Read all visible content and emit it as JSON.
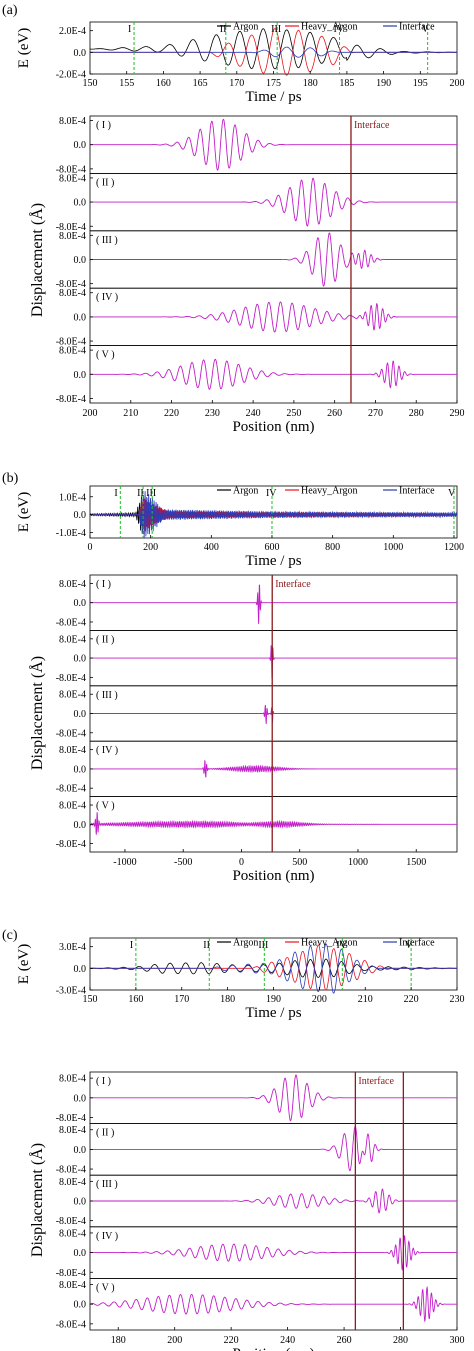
{
  "panels": [
    {
      "letter": "(a)",
      "top_ylabel": "E (eV)",
      "top_xlabel": "Time / ps",
      "bottom_ylabel": "Displacement (Å)",
      "bottom_xlabel": "Position (nm)",
      "interface_label": "Interface"
    },
    {
      "letter": "(b)",
      "top_ylabel": "E (eV)",
      "top_xlabel": "Time / ps",
      "bottom_ylabel": "Displacement (Å)",
      "bottom_xlabel": "Position (nm)",
      "interface_label": "Interface"
    },
    {
      "letter": "(c)",
      "top_ylabel": "E (eV)",
      "top_xlabel": "Time / ps",
      "bottom_ylabel": "Displacement (Å)",
      "bottom_xlabel": "Position (nm)",
      "interface_label": "Interface"
    }
  ],
  "colors": {
    "argon": "#000000",
    "heavy_argon": "#e8141c",
    "interface": "#2a3bb8",
    "displacement": "#c21ec9",
    "marker": "#1fbf2a",
    "interface_line": "#8b1a1a"
  },
  "chart_data": [
    {
      "type": "line",
      "id": "a-top",
      "xlabel": "Time / ps",
      "ylabel": "E (eV)",
      "xlim": [
        150,
        200
      ],
      "ylim": [
        -0.0002,
        0.00028
      ],
      "xticks": [
        "150",
        "155",
        "160",
        "165",
        "170",
        "175",
        "180",
        "185",
        "190",
        "195",
        "200"
      ],
      "yticks": [
        {
          "v": 0.0002,
          "t": "2.0E-4"
        },
        {
          "v": 0,
          "t": "0.0"
        },
        {
          "v": -0.0002,
          "t": "-2.0E-4"
        }
      ],
      "legend": [
        "Argon",
        "Heavy_Argon",
        "Interface"
      ],
      "legend_position": "top-right",
      "markers": [
        {
          "x": 156,
          "label": "I"
        },
        {
          "x": 168.5,
          "label": "II"
        },
        {
          "x": 175.5,
          "label": "III"
        },
        {
          "x": 184,
          "label": "IV"
        },
        {
          "x": 196,
          "label": "V"
        }
      ],
      "series": [
        {
          "name": "Argon",
          "envelope": [
            [
              150,
              0
            ],
            [
              160,
              3e-05
            ],
            [
              167,
              0.00013
            ],
            [
              173,
              0.00019
            ],
            [
              179,
              0.00017
            ],
            [
              185,
              8e-05
            ],
            [
              192,
              1e-05
            ],
            [
              200,
              0
            ]
          ],
          "period_ps": 3.2,
          "offset": 3e-05
        },
        {
          "name": "Heavy_Argon",
          "envelope": [
            [
              166,
              0
            ],
            [
              170,
              0.00012
            ],
            [
              175,
              0.00022
            ],
            [
              179,
              0.0002
            ],
            [
              183,
              0.00012
            ],
            [
              186,
              0
            ]
          ],
          "period_ps": 3.2,
          "offset": 0
        },
        {
          "name": "Interface",
          "envelope": [
            [
              172,
              0
            ],
            [
              176,
              5e-05
            ],
            [
              181,
              4e-05
            ],
            [
              184,
              0
            ]
          ],
          "period_ps": 3.2,
          "offset": 0
        }
      ]
    },
    {
      "type": "line",
      "id": "a-bottom",
      "subplots": [
        "( I )",
        "( II )",
        "( III )",
        "( IV )",
        "( V )"
      ],
      "xlabel": "Position (nm)",
      "ylabel": "Displacement (Å)",
      "xlim": [
        200,
        290
      ],
      "ylim": [
        -0.00095,
        0.00095
      ],
      "xticks": [
        "200",
        "210",
        "220",
        "230",
        "240",
        "250",
        "260",
        "270",
        "280",
        "290"
      ],
      "yticks": [
        {
          "v": 0.0008,
          "t": "8.0E-4"
        },
        {
          "v": 0,
          "t": "0.0"
        },
        {
          "v": -0.0008,
          "t": "-8.0E-4"
        }
      ],
      "interface_x": [
        264
      ],
      "series": [
        {
          "name": "( I )",
          "packets": [
            {
              "c": 232,
              "w": 7,
              "a": 0.00085,
              "k": 1.1
            }
          ]
        },
        {
          "name": "( II )",
          "packets": [
            {
              "c": 254,
              "w": 7,
              "a": 0.0008,
              "k": 1.1
            }
          ]
        },
        {
          "name": "( III )",
          "packets": [
            {
              "c": 258,
              "w": 4.5,
              "a": 0.0009,
              "k": 1.1
            },
            {
              "c": 267,
              "w": 2.5,
              "a": 0.0003,
              "k": 2
            }
          ]
        },
        {
          "name": "( IV )",
          "packets": [
            {
              "c": 246,
              "w": 12,
              "a": 0.0005,
              "k": 1.1
            },
            {
              "c": 270,
              "w": 2.5,
              "a": 0.00045,
              "k": 2.2
            }
          ]
        },
        {
          "name": "( V )",
          "packets": [
            {
              "c": 230,
              "w": 10,
              "a": 0.0005,
              "k": 1.1
            },
            {
              "c": 274,
              "w": 2.5,
              "a": 0.00045,
              "k": 2.2
            }
          ]
        }
      ]
    },
    {
      "type": "line",
      "id": "b-top",
      "xlabel": "Time / ps",
      "ylabel": "E (eV)",
      "xlim": [
        0,
        1210
      ],
      "ylim": [
        -0.00013,
        0.00016
      ],
      "xticks": [
        "0",
        "200",
        "400",
        "600",
        "800",
        "1000",
        "1200"
      ],
      "yticks": [
        {
          "v": 0.0001,
          "t": "1.0E-4"
        },
        {
          "v": 0,
          "t": "0.0"
        },
        {
          "v": -0.0001,
          "t": "-1.0E-4"
        }
      ],
      "legend": [
        "Argon",
        "Heavy_Argon",
        "Interface"
      ],
      "legend_position": "top-right",
      "markers": [
        {
          "x": 100,
          "label": "I"
        },
        {
          "x": 175,
          "label": "II"
        },
        {
          "x": 205,
          "label": "III"
        },
        {
          "x": 600,
          "label": "IV"
        },
        {
          "x": 1200,
          "label": "V"
        }
      ],
      "series": [
        {
          "name": "Argon",
          "envelope": [
            [
              0,
              5e-06
            ],
            [
              150,
              1e-05
            ],
            [
              175,
              0.00013
            ],
            [
              200,
              4e-05
            ],
            [
              260,
              1e-05
            ],
            [
              1200,
              4e-06
            ]
          ],
          "period_ps": 6,
          "offset": 0
        },
        {
          "name": "Heavy_Argon",
          "envelope": [
            [
              0,
              0
            ],
            [
              160,
              0
            ],
            [
              175,
              0.0001
            ],
            [
              205,
              6e-05
            ],
            [
              260,
              2e-05
            ],
            [
              600,
              1e-05
            ],
            [
              1200,
              5e-06
            ]
          ],
          "period_ps": 6,
          "offset": 0
        },
        {
          "name": "Interface",
          "envelope": [
            [
              0,
              0
            ],
            [
              160,
              0
            ],
            [
              175,
              0.00014
            ],
            [
              205,
              0.0001
            ],
            [
              240,
              3e-05
            ],
            [
              600,
              1.8e-05
            ],
            [
              1200,
              1.2e-05
            ]
          ],
          "period_ps": 6,
          "offset": 0
        }
      ]
    },
    {
      "type": "line",
      "id": "b-bottom",
      "subplots": [
        "( I )",
        "( II )",
        "( III )",
        "( IV )",
        "( V )"
      ],
      "xlabel": "Position (nm)",
      "ylabel": "Displacement (Å)",
      "xlim": [
        -1300,
        1850
      ],
      "ylim": [
        -0.00115,
        0.00115
      ],
      "xticks": [
        "-1000",
        "-500",
        "0",
        "500",
        "1000",
        "1500"
      ],
      "yticks": [
        {
          "v": 0.0008,
          "t": "8.0E-4"
        },
        {
          "v": 0,
          "t": "0.0"
        },
        {
          "v": -0.0008,
          "t": "-8.0E-4"
        }
      ],
      "interface_x": [
        264
      ],
      "series": [
        {
          "name": "( I )",
          "packets": [
            {
              "c": 150,
              "w": 12,
              "a": 0.00095,
              "k": 2
            }
          ]
        },
        {
          "name": "( II )",
          "packets": [
            {
              "c": 262,
              "w": 10,
              "a": 0.0009,
              "k": 2
            }
          ]
        },
        {
          "name": "( III )",
          "packets": [
            {
              "c": 210,
              "w": 12,
              "a": 0.00045,
              "k": 2
            },
            {
              "c": 264,
              "w": 8,
              "a": 0.0004,
              "k": 2
            }
          ]
        },
        {
          "name": "( IV )",
          "packets": [
            {
              "c": -310,
              "w": 14,
              "a": 0.0004,
              "k": 2
            },
            {
              "c": 120,
              "w": 260,
              "a": 0.00012,
              "k": 2
            }
          ]
        },
        {
          "name": "( V )",
          "packets": [
            {
              "c": -1240,
              "w": 14,
              "a": 0.0005,
              "k": 2
            },
            {
              "c": -400,
              "w": 800,
              "a": 0.00012,
              "k": 2
            },
            {
              "c": 300,
              "w": 300,
              "a": 0.00015,
              "k": 2
            }
          ]
        }
      ]
    },
    {
      "type": "line",
      "id": "c-top",
      "xlabel": "Time / ps",
      "ylabel": "E (eV)",
      "xlim": [
        150,
        230
      ],
      "ylim": [
        -0.0003,
        0.00042
      ],
      "xticks": [
        "150",
        "160",
        "170",
        "180",
        "190",
        "200",
        "210",
        "220",
        "230"
      ],
      "yticks": [
        {
          "v": 0.0003,
          "t": "3.0E-4"
        },
        {
          "v": 0,
          "t": "0.0"
        },
        {
          "v": -0.0003,
          "t": "-3.0E-4"
        }
      ],
      "legend": [
        "Argon",
        "Heavy_Argon",
        "Interface"
      ],
      "legend_position": "top-right",
      "markers": [
        {
          "x": 160,
          "label": "I"
        },
        {
          "x": 176,
          "label": "II"
        },
        {
          "x": 188,
          "label": "III"
        },
        {
          "x": 205,
          "label": "IV"
        },
        {
          "x": 220,
          "label": "V"
        }
      ],
      "series": [
        {
          "name": "Argon",
          "envelope": [
            [
              150,
              0
            ],
            [
              160,
              2e-05
            ],
            [
              166,
              7e-05
            ],
            [
              175,
              8e-05
            ],
            [
              183,
              4e-05
            ],
            [
              190,
              6e-05
            ],
            [
              196,
              0.00012
            ],
            [
              202,
              0.00013
            ],
            [
              210,
              3e-05
            ],
            [
              230,
              0
            ]
          ],
          "period_ps": 3.4,
          "offset": 0
        },
        {
          "name": "Heavy_Argon",
          "envelope": [
            [
              185,
              0
            ],
            [
              193,
              0.00015
            ],
            [
              200,
              0.00033
            ],
            [
              206,
              0.00022
            ],
            [
              212,
              5e-05
            ],
            [
              216,
              0
            ]
          ],
          "period_ps": 3.4,
          "offset": 0
        },
        {
          "name": "Interface",
          "envelope": [
            [
              175,
              0
            ],
            [
              182,
              5e-05
            ],
            [
              190,
              8e-05
            ],
            [
              197,
              0.0003
            ],
            [
              203,
              0.00035
            ],
            [
              208,
              0.00012
            ],
            [
              213,
              0
            ]
          ],
          "period_ps": 3.4,
          "offset": 0
        }
      ]
    },
    {
      "type": "line",
      "id": "c-bottom",
      "subplots": [
        "( I )",
        "( II )",
        "( III )",
        "( IV )",
        "( V )"
      ],
      "xlabel": "Position (nm)",
      "ylabel": "Displacement (Å)",
      "xlim": [
        170,
        300
      ],
      "ylim": [
        -0.00105,
        0.00105
      ],
      "xticks": [
        "180",
        "200",
        "220",
        "240",
        "260",
        "280",
        "300"
      ],
      "yticks": [
        {
          "v": 0.0008,
          "t": "8.0E-4"
        },
        {
          "v": 0,
          "t": "0.0"
        },
        {
          "v": -0.0008,
          "t": "-8.0E-4"
        }
      ],
      "interface_x": [
        264,
        281
      ],
      "series": [
        {
          "name": "( I )",
          "packets": [
            {
              "c": 242,
              "w": 7,
              "a": 0.00095,
              "k": 0.8
            }
          ]
        },
        {
          "name": "( II )",
          "packets": [
            {
              "c": 263,
              "w": 5,
              "a": 0.0009,
              "k": 0.8
            },
            {
              "c": 268,
              "w": 3,
              "a": 0.0005,
              "k": 1.3
            }
          ]
        },
        {
          "name": "( III )",
          "packets": [
            {
              "c": 244,
              "w": 12,
              "a": 0.0003,
              "k": 0.8
            },
            {
              "c": 273,
              "w": 3.5,
              "a": 0.0005,
              "k": 1.3
            }
          ]
        },
        {
          "name": "( IV )",
          "packets": [
            {
              "c": 220,
              "w": 18,
              "a": 0.00035,
              "k": 0.8
            },
            {
              "c": 281,
              "w": 3,
              "a": 0.0007,
              "k": 2
            }
          ]
        },
        {
          "name": "( V )",
          "packets": [
            {
              "c": 205,
              "w": 22,
              "a": 0.0004,
              "k": 0.8
            },
            {
              "c": 289,
              "w": 3,
              "a": 0.0007,
              "k": 2
            }
          ]
        }
      ]
    }
  ]
}
